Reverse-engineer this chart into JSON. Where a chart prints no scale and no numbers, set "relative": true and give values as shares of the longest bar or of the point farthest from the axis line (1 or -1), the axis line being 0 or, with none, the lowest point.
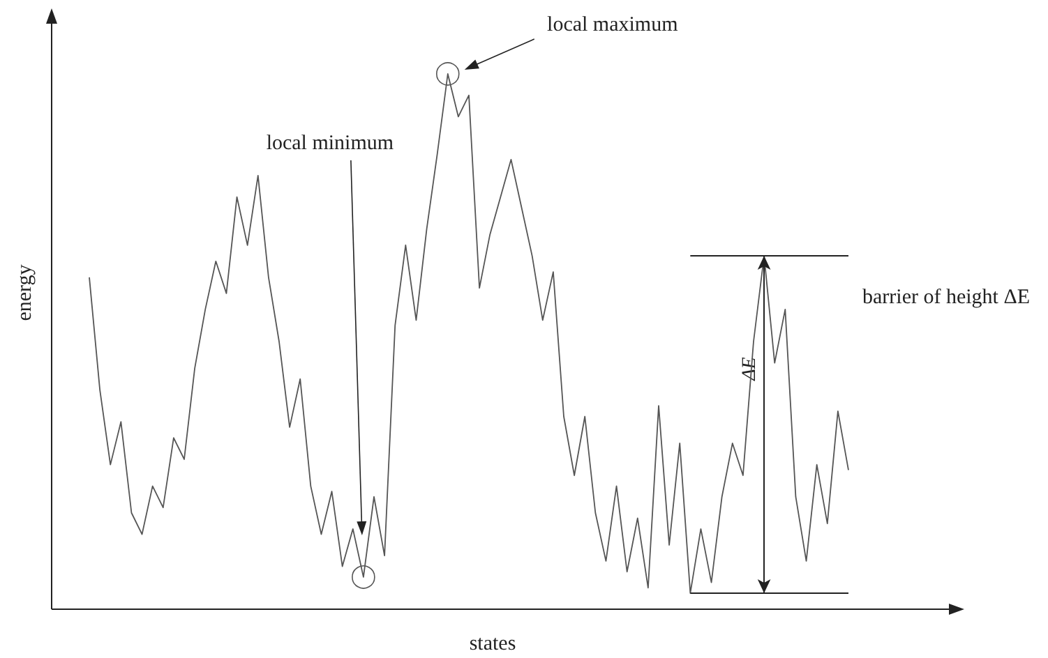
{
  "chart_data": {
    "type": "line",
    "relative": true,
    "xlabel": "states",
    "ylabel": "energy",
    "color": "#555555",
    "marker": "none",
    "line_style": "solid",
    "categories": [
      null,
      null,
      null,
      null,
      null,
      null,
      null,
      null,
      null,
      null,
      null,
      null,
      null,
      null,
      null,
      null,
      null,
      null,
      null,
      null,
      null,
      null,
      null,
      null,
      null,
      null,
      null,
      null,
      null,
      null,
      null,
      null,
      null,
      null,
      null,
      null,
      null,
      null,
      null,
      null,
      null,
      null,
      null,
      null,
      null,
      null,
      null,
      null,
      null,
      null,
      null,
      null,
      null,
      null,
      null,
      null,
      null,
      null,
      null,
      null,
      null,
      null,
      null,
      null,
      null,
      null,
      null,
      null,
      null,
      null,
      null,
      null,
      null
    ],
    "values": [
      0.62,
      0.41,
      0.27,
      0.35,
      0.18,
      0.14,
      0.23,
      0.19,
      0.32,
      0.28,
      0.45,
      0.56,
      0.65,
      0.59,
      0.77,
      0.68,
      0.81,
      0.62,
      0.5,
      0.34,
      0.43,
      0.23,
      0.14,
      0.22,
      0.08,
      0.15,
      0.06,
      0.21,
      0.1,
      0.53,
      0.68,
      0.54,
      0.71,
      0.85,
      1,
      0.92,
      0.96,
      0.6,
      0.7,
      0.77,
      0.84,
      0.75,
      0.66,
      0.54,
      0.63,
      0.36,
      0.25,
      0.36,
      0.18,
      0.09,
      0.23,
      0.07,
      0.17,
      0.04,
      0.38,
      0.12,
      0.31,
      0.03,
      0.15,
      0.05,
      0.21,
      0.31,
      0.25,
      0.5,
      0.66,
      0.46,
      0.56,
      0.21,
      0.09,
      0.27,
      0.16,
      0.37,
      0.26
    ],
    "annotations": [
      "local minimum",
      "local maximum",
      "ΔE"
    ],
    "ref_lines": [
      {
        "axis": "y",
        "value": 0.66,
        "label": "barrier of height ΔE"
      },
      {
        "axis": "y",
        "value": 0.03
      }
    ]
  }
}
